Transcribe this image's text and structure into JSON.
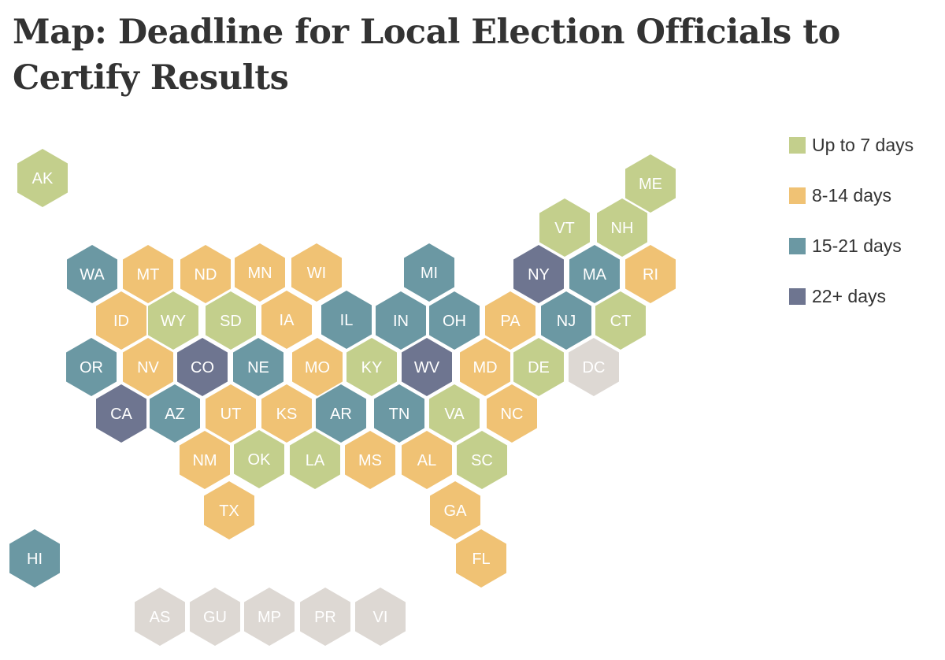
{
  "title": "Map: Deadline for Local Election Officials to Certify Results",
  "colors": {
    "up_to_7": "#c3cf8c",
    "d8_14": "#f0c274",
    "d15_21": "#6b98a3",
    "d22_plus": "#6e7590",
    "no_data": "#ddd8d3"
  },
  "legend": [
    {
      "label": "Up to 7 days",
      "category": "up_to_7"
    },
    {
      "label": "8-14 days",
      "category": "d8_14"
    },
    {
      "label": "15-21 days",
      "category": "d15_21"
    },
    {
      "label": "22+ days",
      "category": "d22_plus"
    }
  ],
  "states": [
    {
      "abbr": "AK",
      "category": "up_to_7"
    },
    {
      "abbr": "ME",
      "category": "up_to_7"
    },
    {
      "abbr": "VT",
      "category": "up_to_7"
    },
    {
      "abbr": "NH",
      "category": "up_to_7"
    },
    {
      "abbr": "WA",
      "category": "d15_21"
    },
    {
      "abbr": "MT",
      "category": "d8_14"
    },
    {
      "abbr": "ND",
      "category": "d8_14"
    },
    {
      "abbr": "MN",
      "category": "d8_14"
    },
    {
      "abbr": "WI",
      "category": "d8_14"
    },
    {
      "abbr": "MI",
      "category": "d15_21"
    },
    {
      "abbr": "NY",
      "category": "d22_plus"
    },
    {
      "abbr": "MA",
      "category": "d15_21"
    },
    {
      "abbr": "RI",
      "category": "d8_14"
    },
    {
      "abbr": "ID",
      "category": "d8_14"
    },
    {
      "abbr": "WY",
      "category": "up_to_7"
    },
    {
      "abbr": "SD",
      "category": "up_to_7"
    },
    {
      "abbr": "IA",
      "category": "d8_14"
    },
    {
      "abbr": "IL",
      "category": "d15_21"
    },
    {
      "abbr": "IN",
      "category": "d15_21"
    },
    {
      "abbr": "OH",
      "category": "d15_21"
    },
    {
      "abbr": "PA",
      "category": "d8_14"
    },
    {
      "abbr": "NJ",
      "category": "d15_21"
    },
    {
      "abbr": "CT",
      "category": "up_to_7"
    },
    {
      "abbr": "OR",
      "category": "d15_21"
    },
    {
      "abbr": "NV",
      "category": "d8_14"
    },
    {
      "abbr": "CO",
      "category": "d22_plus"
    },
    {
      "abbr": "NE",
      "category": "d15_21"
    },
    {
      "abbr": "MO",
      "category": "d8_14"
    },
    {
      "abbr": "KY",
      "category": "up_to_7"
    },
    {
      "abbr": "WV",
      "category": "d22_plus"
    },
    {
      "abbr": "MD",
      "category": "d8_14"
    },
    {
      "abbr": "DE",
      "category": "up_to_7"
    },
    {
      "abbr": "DC",
      "category": "no_data"
    },
    {
      "abbr": "CA",
      "category": "d22_plus"
    },
    {
      "abbr": "AZ",
      "category": "d15_21"
    },
    {
      "abbr": "UT",
      "category": "d8_14"
    },
    {
      "abbr": "KS",
      "category": "d8_14"
    },
    {
      "abbr": "AR",
      "category": "d15_21"
    },
    {
      "abbr": "TN",
      "category": "d15_21"
    },
    {
      "abbr": "VA",
      "category": "up_to_7"
    },
    {
      "abbr": "NC",
      "category": "d8_14"
    },
    {
      "abbr": "NM",
      "category": "d8_14"
    },
    {
      "abbr": "OK",
      "category": "up_to_7"
    },
    {
      "abbr": "LA",
      "category": "up_to_7"
    },
    {
      "abbr": "MS",
      "category": "d8_14"
    },
    {
      "abbr": "AL",
      "category": "d8_14"
    },
    {
      "abbr": "SC",
      "category": "up_to_7"
    },
    {
      "abbr": "TX",
      "category": "d8_14"
    },
    {
      "abbr": "GA",
      "category": "d8_14"
    },
    {
      "abbr": "FL",
      "category": "d8_14"
    },
    {
      "abbr": "HI",
      "category": "d15_21"
    },
    {
      "abbr": "AS",
      "category": "no_data"
    },
    {
      "abbr": "GU",
      "category": "no_data"
    },
    {
      "abbr": "MP",
      "category": "no_data"
    },
    {
      "abbr": "PR",
      "category": "no_data"
    },
    {
      "abbr": "VI",
      "category": "no_data"
    }
  ]
}
